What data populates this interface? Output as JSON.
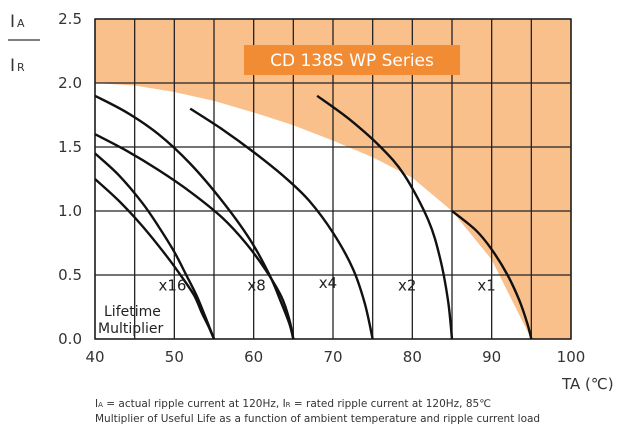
{
  "chart_data": {
    "type": "line",
    "title": "CD 138S WP Series",
    "xlabel": "TA (℃)",
    "ylabel_numerator": "I",
    "ylabel_numerator_sub": "A",
    "ylabel_denominator": "I",
    "ylabel_denominator_sub": "R",
    "xlim": [
      40,
      100
    ],
    "ylim": [
      0,
      2.5
    ],
    "xticks": [
      "40",
      "50",
      "60",
      "70",
      "80",
      "90",
      "100"
    ],
    "yticks": [
      "0.0",
      "0.5",
      "1.0",
      "1.5",
      "2.0",
      "2.5"
    ],
    "x_grid_step": 5,
    "grid": true,
    "shaded_region_color": "#F9C08C",
    "banner_color": "#F28C34",
    "boundary": {
      "x": [
        40,
        45,
        50,
        55,
        60,
        65,
        70,
        75,
        80,
        85,
        90,
        95
      ],
      "y": [
        2.0,
        1.98,
        1.93,
        1.86,
        1.77,
        1.67,
        1.55,
        1.42,
        1.26,
        1.0,
        0.62,
        0.0
      ]
    },
    "series": [
      {
        "label": "x1",
        "label_x": 88.2,
        "label_y": 0.38,
        "x": [
          85,
          88,
          90,
          92,
          93.5,
          94.5,
          95
        ],
        "y": [
          1.0,
          0.85,
          0.7,
          0.5,
          0.3,
          0.12,
          0.0
        ]
      },
      {
        "label": "x2",
        "label_x": 78.2,
        "label_y": 0.38,
        "x": [
          68,
          72,
          76,
          79,
          82,
          83.5,
          84.5,
          85
        ],
        "y": [
          1.9,
          1.72,
          1.5,
          1.28,
          0.93,
          0.63,
          0.3,
          0.0
        ]
      },
      {
        "label": "x4",
        "label_x": 68.2,
        "label_y": 0.4,
        "x": [
          52,
          56,
          60,
          64,
          67,
          70,
          72.5,
          74,
          75
        ],
        "y": [
          1.8,
          1.64,
          1.46,
          1.26,
          1.08,
          0.83,
          0.55,
          0.28,
          0.0
        ]
      },
      {
        "label": "x8",
        "label_x": 59.2,
        "label_y": 0.38,
        "x": [
          40,
          44,
          48,
          52,
          56,
          59,
          61.5,
          63.5,
          64.5,
          65
        ],
        "y": [
          1.6,
          1.47,
          1.32,
          1.15,
          0.95,
          0.75,
          0.54,
          0.33,
          0.15,
          0.0
        ]
      },
      {
        "label": "x16",
        "label_x": 48.0,
        "label_y": 0.38,
        "x": [
          40,
          43,
          46,
          49,
          51,
          52.5,
          53.5,
          54.3,
          55
        ],
        "y": [
          1.25,
          1.08,
          0.88,
          0.65,
          0.48,
          0.34,
          0.2,
          0.1,
          0.0
        ]
      },
      {
        "label": "",
        "x": [
          40,
          44,
          48,
          52,
          56,
          59.5,
          62,
          63.5,
          64.5,
          65
        ],
        "y": [
          1.9,
          1.77,
          1.6,
          1.37,
          1.08,
          0.78,
          0.5,
          0.28,
          0.12,
          0.0
        ]
      },
      {
        "label": "",
        "x": [
          40,
          43,
          46,
          48,
          50,
          51.5,
          52.8,
          53.8,
          54.5,
          55
        ],
        "y": [
          1.45,
          1.28,
          1.06,
          0.88,
          0.68,
          0.5,
          0.34,
          0.19,
          0.08,
          0.0
        ]
      }
    ],
    "annotations": {
      "multiplier_label_1": "Lifetime",
      "multiplier_label_2": "Multiplier",
      "multiplier_label_x": 40.3,
      "multiplier_label_y": 0.2
    }
  },
  "footnote": {
    "line1": "Iₐ = actual ripple current at 120Hz, Iᵣ = rated ripple current at 120Hz, 85℃",
    "line1_parts": {
      "a_sym": "I",
      "a_sub": "A",
      "a_text": " = actual ripple current at 120Hz, ",
      "r_sym": "I",
      "r_sub": "R",
      "r_text": " = rated ripple current at 120Hz, 85℃"
    },
    "line2": "Multiplier of Useful Life as a function of ambient temperature and ripple current load"
  }
}
